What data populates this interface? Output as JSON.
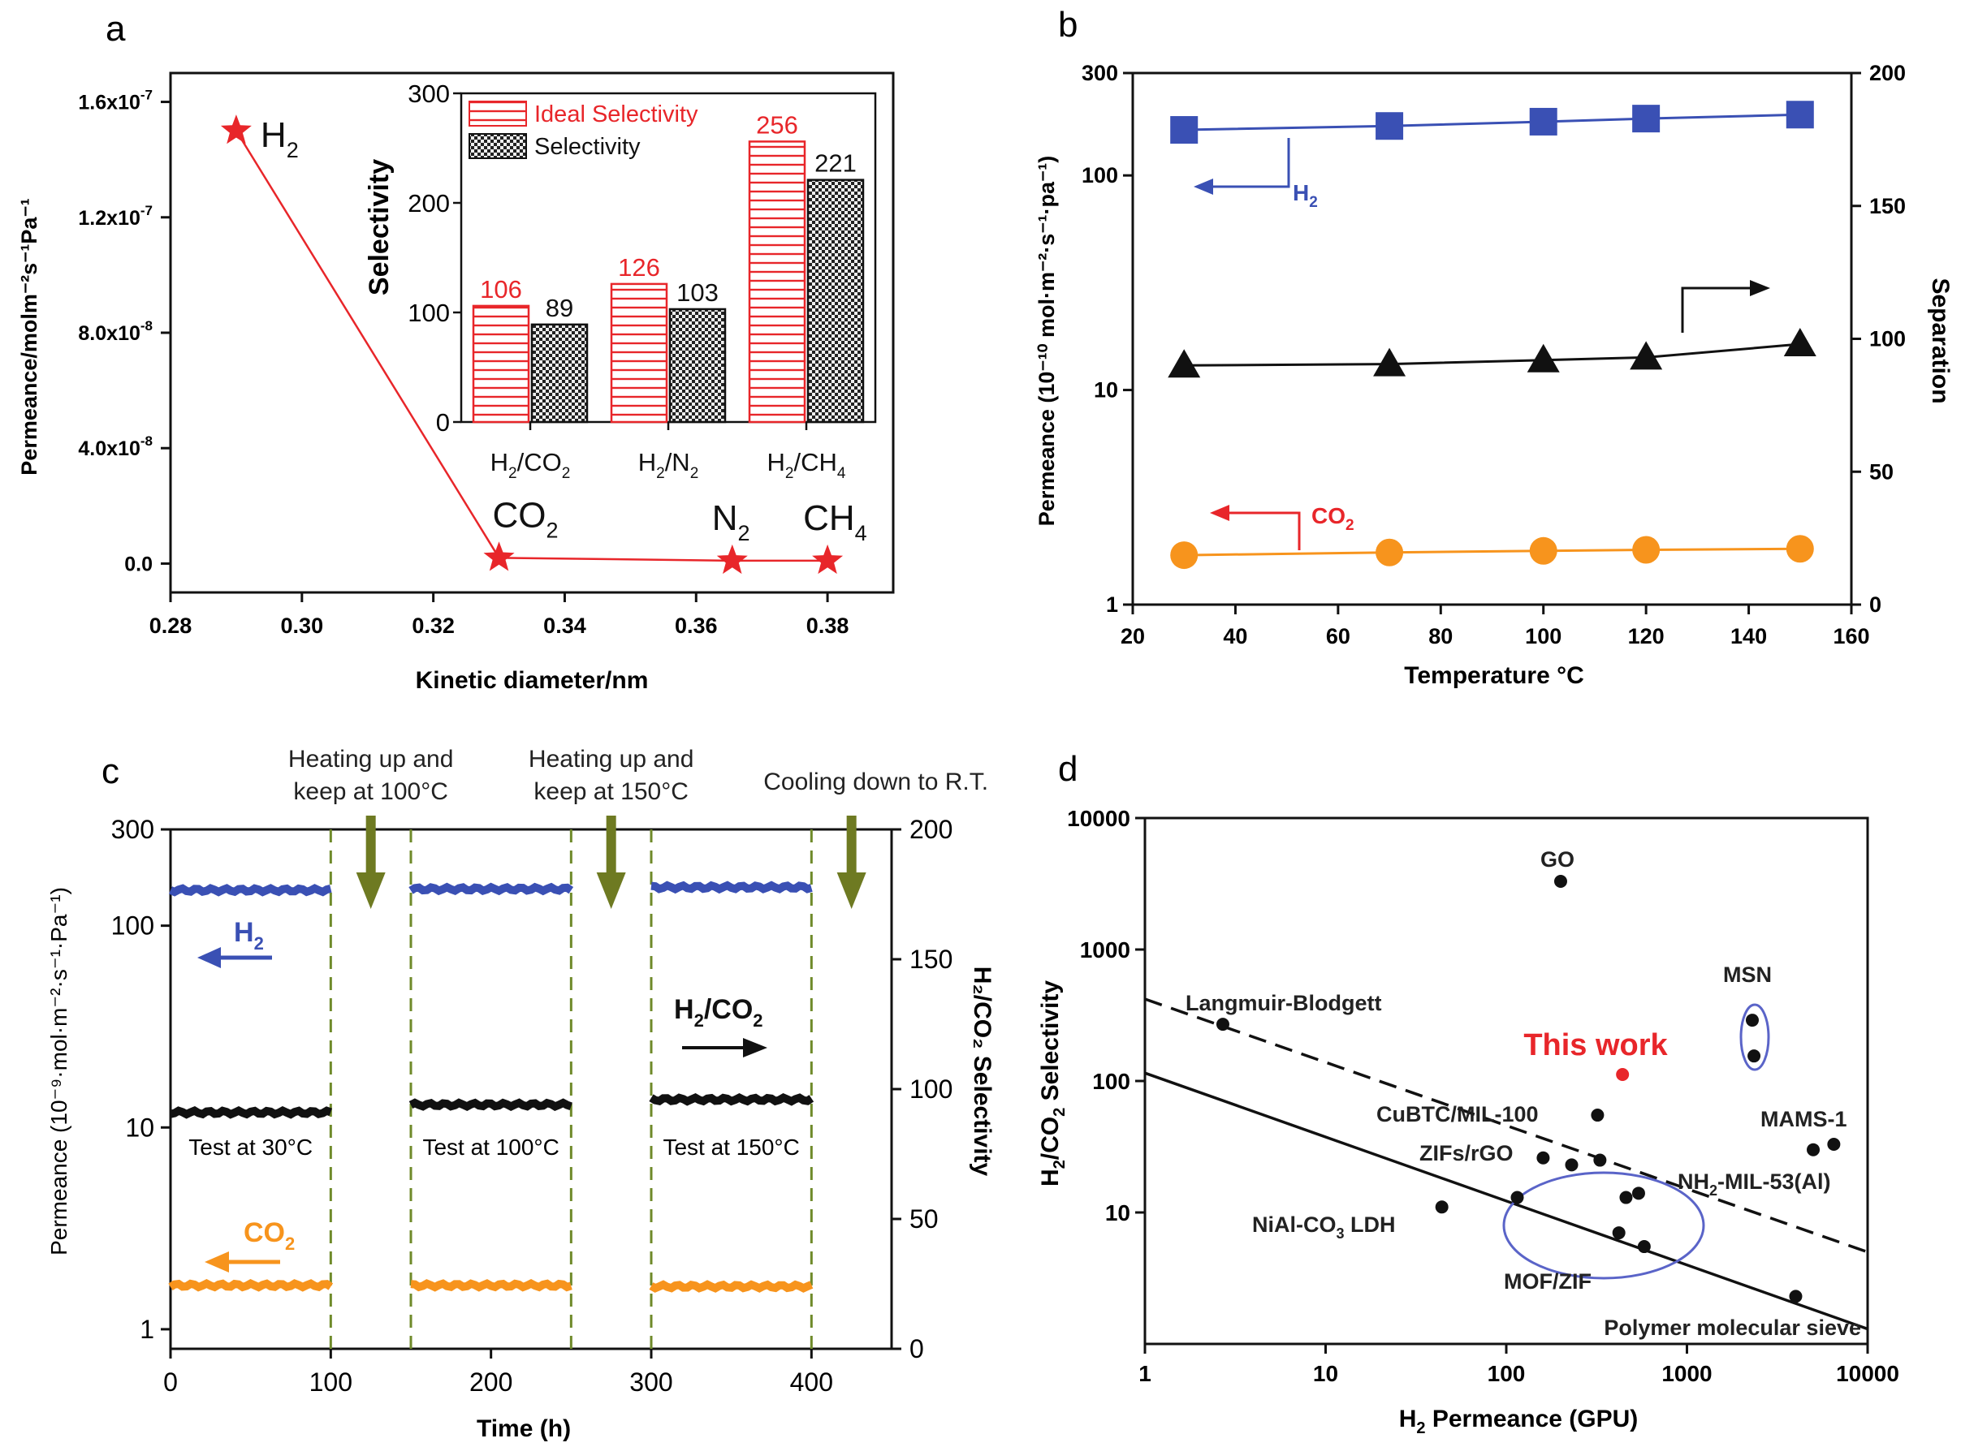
{
  "colors": {
    "red": "#e8262a",
    "blue": "#3a50b4",
    "orange": "#f7941d",
    "black": "#111111",
    "olive": "#6e7a22",
    "green_dash": "#6f8a2a",
    "ellipse": "#5a64c8"
  },
  "chart_data": [
    {
      "panel": "a",
      "panel_label": "a",
      "type": "line",
      "xlabel": "Kinetic diameter/nm",
      "ylabel": "Permeance/molm⁻²s⁻¹Pa⁻¹",
      "xlim": [
        0.28,
        0.39
      ],
      "ylim": [
        -1e-08,
        1.7e-07
      ],
      "xticks": [
        0.28,
        0.3,
        0.32,
        0.34,
        0.36,
        0.38
      ],
      "xtick_labels": [
        "0.28",
        "0.30",
        "0.32",
        "0.34",
        "0.36",
        "0.38"
      ],
      "yticks": [
        0,
        4e-08,
        8e-08,
        1.2e-07,
        1.6e-07
      ],
      "ytick_labels": [
        {
          "base": "0.0",
          "exp": ""
        },
        {
          "base": "4.0x10",
          "exp": "-8"
        },
        {
          "base": "8.0x10",
          "exp": "-8"
        },
        {
          "base": "1.2x10",
          "exp": "-7"
        },
        {
          "base": "1.6x10",
          "exp": "-7"
        }
      ],
      "points": [
        {
          "gas": "H",
          "sub": "2",
          "x": 0.29,
          "y": 1.5e-07
        },
        {
          "gas": "CO",
          "sub": "2",
          "x": 0.33,
          "y": 2e-09
        },
        {
          "gas": "N",
          "sub": "2",
          "x": 0.3655,
          "y": 1e-09
        },
        {
          "gas": "CH",
          "sub": "4",
          "x": 0.38,
          "y": 1e-09
        }
      ],
      "inset": {
        "type": "bar",
        "ylabel": "Selectivity",
        "ylim": [
          0,
          300
        ],
        "yticks": [
          0,
          100,
          200,
          300
        ],
        "categories": [
          {
            "a": "H",
            "a_sub": "2",
            "b": "/CO",
            "b_sub": "2"
          },
          {
            "a": "H",
            "a_sub": "2",
            "b": "/N",
            "b_sub": "2"
          },
          {
            "a": "H",
            "a_sub": "2",
            "b": "/CH",
            "b_sub": "4"
          }
        ],
        "series": [
          {
            "name": "Ideal Selectivity",
            "values": [
              106,
              126,
              256
            ]
          },
          {
            "name": "Selectivity",
            "values": [
              89,
              103,
              221
            ]
          }
        ]
      }
    },
    {
      "panel": "b",
      "panel_label": "b",
      "type": "scatter",
      "xlabel": "Temperature °C",
      "ylabel": "Permeance (10⁻¹⁰ mol·m⁻²·s⁻¹·pa⁻¹)",
      "ylabel_right": "Separation",
      "xlim": [
        20,
        160
      ],
      "xticks": [
        20,
        40,
        60,
        80,
        100,
        120,
        140,
        160
      ],
      "ylim_log": [
        1,
        300
      ],
      "yticks": [
        1,
        10,
        100,
        300
      ],
      "ylim_right": [
        0,
        200
      ],
      "yticks_right": [
        0,
        50,
        100,
        150,
        200
      ],
      "series": [
        {
          "name": "H",
          "sub": "2",
          "axis": "left",
          "marker": "square",
          "x": [
            30,
            70,
            100,
            120,
            150
          ],
          "values": [
            163,
            170,
            178,
            184,
            192
          ]
        },
        {
          "name": "CO",
          "sub": "2",
          "axis": "left",
          "marker": "circle",
          "x": [
            30,
            70,
            100,
            120,
            150
          ],
          "values": [
            1.7,
            1.75,
            1.78,
            1.8,
            1.82
          ]
        },
        {
          "name": "Separation",
          "axis": "right",
          "marker": "triangle",
          "x": [
            30,
            70,
            100,
            120,
            150
          ],
          "values": [
            90,
            90.5,
            92,
            93,
            98
          ]
        }
      ]
    },
    {
      "panel": "c",
      "panel_label": "c",
      "type": "line",
      "xlabel": "Time (h)",
      "ylabel": "Permeance (10⁻⁹·mol·m⁻²·s⁻¹·Pa⁻¹)",
      "ylabel_right": "H₂/CO₂ Selectivity",
      "xlim": [
        0,
        450
      ],
      "xticks": [
        0,
        100,
        200,
        300,
        400
      ],
      "ylim_log": [
        0.8,
        300
      ],
      "yticks": [
        1,
        10,
        100,
        300
      ],
      "ylim_right": [
        0,
        200
      ],
      "yticks_right": [
        0,
        50,
        100,
        150,
        200
      ],
      "segments": [
        [
          0,
          100
        ],
        [
          150,
          250
        ],
        [
          300,
          400
        ]
      ],
      "dashed_x": [
        100,
        150,
        250,
        300,
        400
      ],
      "series": [
        {
          "name": "H",
          "sub": "2",
          "axis": "left",
          "values": [
            150,
            152,
            155
          ]
        },
        {
          "name": "H/CO",
          "sub": "2",
          "axis": "right",
          "values": [
            91,
            94,
            96
          ]
        },
        {
          "name": "CO",
          "sub": "2",
          "axis": "left",
          "values": [
            1.65,
            1.65,
            1.63
          ]
        }
      ],
      "segment_labels": [
        "Test at 30°C",
        "Test at 100°C",
        "Test at 150°C"
      ],
      "stage_labels": [
        {
          "line1": "Heating up and",
          "line2": "keep at 100°C",
          "x": 125
        },
        {
          "line1": "Heating up and",
          "line2": "keep at 150°C",
          "x": 275
        },
        {
          "line1": "Cooling down to R.T.",
          "line2": "",
          "x": 425
        }
      ]
    },
    {
      "panel": "d",
      "panel_label": "d",
      "type": "scatter",
      "xlabel": "H₂ Permeance (GPU)",
      "ylabel": "H₂/CO₂ Selectivity",
      "xlim_log": [
        1,
        10000
      ],
      "ylim_log": [
        1,
        10000
      ],
      "xticks": [
        1,
        10,
        100,
        1000,
        10000
      ],
      "yticks": [
        10,
        100,
        1000,
        10000
      ],
      "points": [
        {
          "x": 2.7,
          "y": 270
        },
        {
          "x": 200,
          "y": 3300
        },
        {
          "x": 2300,
          "y": 290
        },
        {
          "x": 2350,
          "y": 155
        },
        {
          "x": 320,
          "y": 55
        },
        {
          "x": 5000,
          "y": 30
        },
        {
          "x": 6500,
          "y": 33
        },
        {
          "x": 160,
          "y": 26
        },
        {
          "x": 230,
          "y": 23
        },
        {
          "x": 330,
          "y": 25
        },
        {
          "x": 460,
          "y": 13
        },
        {
          "x": 540,
          "y": 14
        },
        {
          "x": 115,
          "y": 13
        },
        {
          "x": 420,
          "y": 7
        },
        {
          "x": 580,
          "y": 5.5
        },
        {
          "x": 44,
          "y": 11
        },
        {
          "x": 4000,
          "y": 2.3
        }
      ],
      "this_work": {
        "x": 440,
        "y": 112,
        "label": "This work"
      },
      "upper_bound_solid": {
        "x": [
          1,
          10000
        ],
        "y": [
          115,
          1.3
        ]
      },
      "upper_bound_dashed": {
        "x": [
          1,
          10000
        ],
        "y": [
          420,
          5
        ]
      },
      "labels": {
        "go": "GO",
        "langmuir": "Langmuir-Blodgett",
        "msn": "MSN",
        "cubtc": "CuBTC/MIL-100",
        "mams": "MAMS-1",
        "zifs": "ZIFs/rGO",
        "nh2mil": "NH",
        "nh2mil_sub": "2",
        "nh2mil_rest": "-MIL-53(Al)",
        "nial": "NiAl-CO",
        "nial_sub": "3",
        "nial_rest": " LDH",
        "mof": "MOF/ZIF",
        "polymer": "Polymer molecular sieve"
      }
    }
  ]
}
